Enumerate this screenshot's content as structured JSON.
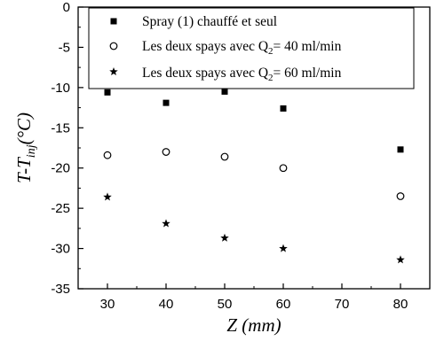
{
  "chart_data": {
    "type": "scatter",
    "xlabel": "Z (mm)",
    "ylabel": "T-T_inj (°C)",
    "xlim": [
      25,
      85
    ],
    "ylim": [
      -35,
      0
    ],
    "xticks": [
      30,
      40,
      50,
      60,
      70,
      80
    ],
    "yticks": [
      0,
      -5,
      -10,
      -15,
      -20,
      -25,
      -30,
      -35
    ],
    "grid": false,
    "legend_position": "top-right",
    "series": [
      {
        "name": "Spray (1) chauffé et seul",
        "marker": "square-filled",
        "x": [
          30,
          40,
          50,
          60,
          80
        ],
        "y": [
          -10.6,
          -11.9,
          -10.5,
          -12.6,
          -17.7
        ]
      },
      {
        "name": "Les deux spays avec Q2= 40 ml/min",
        "marker": "circle-open",
        "x": [
          30,
          40,
          50,
          60,
          80
        ],
        "y": [
          -18.4,
          -18.0,
          -18.6,
          -20.0,
          -23.5
        ]
      },
      {
        "name": "Les deux spays avec Q2= 60 ml/min",
        "marker": "star-filled",
        "x": [
          30,
          40,
          50,
          60,
          80
        ],
        "y": [
          -23.6,
          -26.9,
          -28.7,
          -30.0,
          -31.4
        ]
      }
    ]
  }
}
